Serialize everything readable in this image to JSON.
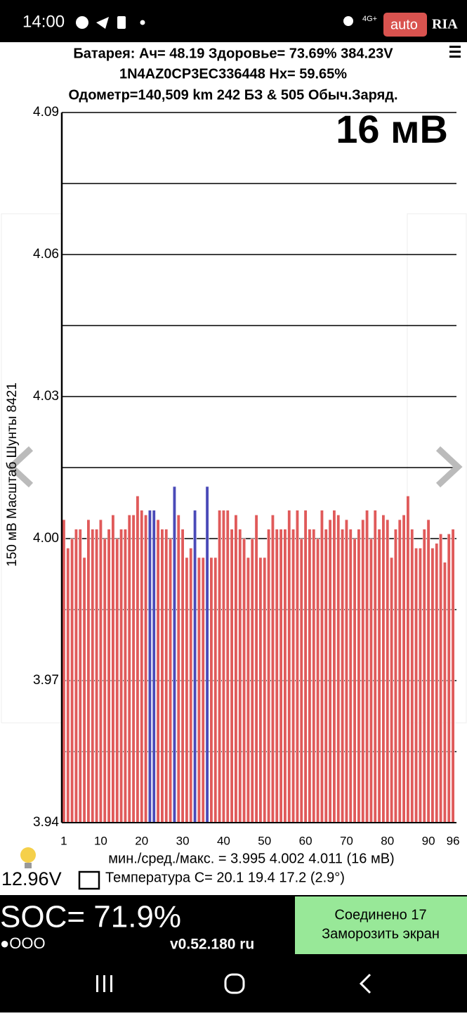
{
  "status_bar": {
    "time": "14:00",
    "network": "4G+"
  },
  "watermark": {
    "left": "auto",
    "right": "RIA"
  },
  "header": {
    "line1": "Батарея:  Ач= 48.19  Здоровье= 73.69%  384.23V",
    "line2": "1N4AZ0CP3EC336448   Hx= 59.65%",
    "line3": "Одометр=140,509 km 242 БЗ & 505 Обыч.Заряд."
  },
  "chart_data": {
    "type": "bar",
    "ylabel": "150 мВ Масштаб  Шунты 8421",
    "annotation": "16 мВ",
    "x": [
      1,
      2,
      3,
      4,
      5,
      6,
      7,
      8,
      9,
      10,
      11,
      12,
      13,
      14,
      15,
      16,
      17,
      18,
      19,
      20,
      21,
      22,
      23,
      24,
      25,
      26,
      27,
      28,
      29,
      30,
      31,
      32,
      33,
      34,
      35,
      36,
      37,
      38,
      39,
      40,
      41,
      42,
      43,
      44,
      45,
      46,
      47,
      48,
      49,
      50,
      51,
      52,
      53,
      54,
      55,
      56,
      57,
      58,
      59,
      60,
      61,
      62,
      63,
      64,
      65,
      66,
      67,
      68,
      69,
      70,
      71,
      72,
      73,
      74,
      75,
      76,
      77,
      78,
      79,
      80,
      81,
      82,
      83,
      84,
      85,
      86,
      87,
      88,
      89,
      90,
      91,
      92,
      93,
      94,
      95,
      96
    ],
    "values": [
      4.004,
      3.998,
      4.0,
      4.002,
      4.002,
      3.996,
      4.004,
      4.002,
      4.002,
      4.004,
      4.0,
      4.002,
      4.005,
      4.0,
      4.002,
      4.002,
      4.005,
      4.005,
      4.009,
      4.006,
      4.005,
      4.006,
      4.006,
      4.004,
      4.002,
      4.002,
      4.0,
      4.011,
      4.005,
      4.002,
      3.996,
      3.998,
      4.006,
      3.996,
      3.996,
      4.011,
      3.996,
      3.996,
      4.006,
      4.006,
      4.006,
      4.002,
      4.005,
      4.002,
      4.0,
      3.996,
      4.0,
      4.005,
      3.996,
      3.996,
      4.002,
      4.005,
      4.002,
      4.002,
      4.002,
      4.006,
      4.002,
      4.006,
      4.0,
      4.006,
      4.002,
      4.002,
      4.0,
      4.006,
      4.002,
      4.004,
      4.006,
      4.005,
      4.002,
      4.004,
      4.002,
      4.0,
      4.002,
      4.004,
      4.006,
      4.0,
      4.006,
      4.002,
      4.005,
      4.004,
      3.996,
      4.002,
      4.004,
      4.005,
      4.009,
      4.002,
      3.998,
      3.998,
      4.002,
      4.004,
      3.998,
      3.999,
      4.001,
      3.995,
      4.001,
      4.002
    ],
    "color": "#e05a5a",
    "highlight_color": "#4a4ab8",
    "highlighted": [
      22,
      23,
      28,
      33,
      36
    ],
    "xlim": [
      0.5,
      96.5
    ],
    "xticks": [
      1,
      10,
      20,
      30,
      40,
      50,
      60,
      70,
      80,
      90,
      96
    ],
    "ylim": [
      3.94,
      4.09
    ],
    "yticks": [
      3.94,
      3.97,
      {
        "value": 4,
        "label": "4.00"
      },
      4.03,
      4.06,
      4.09
    ],
    "yminor": [
      3.955,
      3.985,
      4.015,
      4.045,
      4.075
    ],
    "grid": true
  },
  "footer": {
    "stats": "мин./сред./макс. = 3.995 4.002 4.011  (16 мВ)",
    "voltage": "12.96V",
    "temperature": "Температура C= 20.1  19.4  17.2  (2.9°)",
    "soc": "SOC= 71.9%",
    "dots": "●OOO",
    "version": "v0.52.180 ru",
    "button_line1": "Соединено 17",
    "button_line2": "Заморозить экран"
  }
}
